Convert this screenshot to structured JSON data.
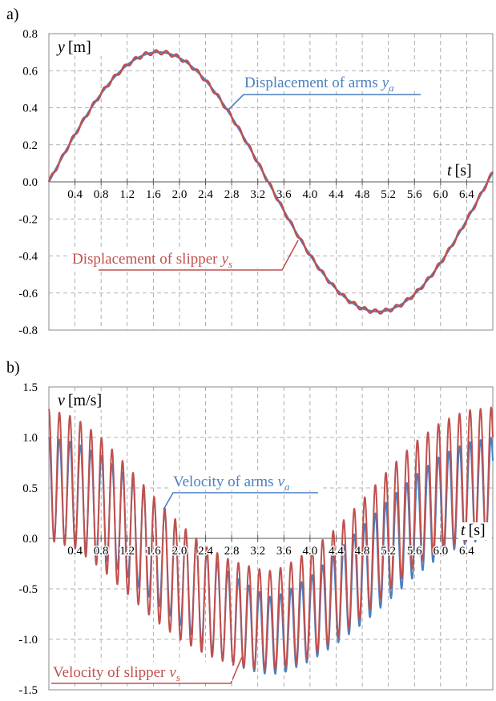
{
  "chart_data": [
    {
      "type": "line",
      "panel_label": "a)",
      "ylabel_var": "y",
      "ylabel_unit": "[m]",
      "xlabel_var": "t",
      "xlabel_unit": "[s]",
      "xlim": [
        0,
        6.8
      ],
      "ylim": [
        -0.8,
        0.8
      ],
      "yticks": [
        -0.8,
        -0.6,
        -0.4,
        -0.2,
        0.0,
        0.2,
        0.4,
        0.6,
        0.8
      ],
      "ytick_labels": [
        "-0.8",
        "-0.6",
        "-0.4",
        "-0.2",
        "0.0",
        "0.2",
        "0.4",
        "0.6",
        "0.8"
      ],
      "xticks": [
        0.4,
        0.8,
        1.2,
        1.6,
        2.0,
        2.4,
        2.8,
        3.2,
        3.6,
        4.0,
        4.4,
        4.8,
        5.2,
        5.6,
        6.0,
        6.4
      ],
      "xtick_labels": [
        "0.4",
        "0.8",
        "1.2",
        "1.6",
        "2.0",
        "2.4",
        "2.8",
        "3.2",
        "3.6",
        "4.0",
        "4.4",
        "4.8",
        "5.2",
        "5.6",
        "6.0",
        "6.4"
      ],
      "grid": true,
      "series": [
        {
          "name": "Displacement of arms",
          "sub": "a",
          "color": "#4a7fc1",
          "x": [
            0,
            0.4,
            0.8,
            1.2,
            1.6,
            1.7,
            2.0,
            2.4,
            2.8,
            3.2,
            3.4,
            3.6,
            4.0,
            4.4,
            4.8,
            5.1,
            5.2,
            5.6,
            6.0,
            6.4,
            6.8
          ],
          "y": [
            0.0,
            0.25,
            0.47,
            0.62,
            0.7,
            0.7,
            0.68,
            0.56,
            0.37,
            0.14,
            0.0,
            -0.14,
            -0.37,
            -0.56,
            -0.68,
            -0.7,
            -0.69,
            -0.62,
            -0.47,
            -0.25,
            0.05
          ]
        },
        {
          "name": "Displacement of slipper",
          "sub": "s",
          "color": "#c0504d",
          "x": [
            0,
            0.4,
            0.8,
            1.2,
            1.6,
            1.7,
            2.0,
            2.4,
            2.8,
            3.2,
            3.4,
            3.6,
            4.0,
            4.4,
            4.8,
            5.1,
            5.2,
            5.6,
            6.0,
            6.4,
            6.8
          ],
          "y": [
            0.0,
            0.25,
            0.47,
            0.62,
            0.7,
            0.7,
            0.68,
            0.56,
            0.37,
            0.14,
            0.0,
            -0.14,
            -0.37,
            -0.56,
            -0.68,
            -0.7,
            -0.69,
            -0.62,
            -0.47,
            -0.25,
            0.05
          ],
          "ripple_amplitude": 0.012,
          "ripple_period": 0.16
        }
      ]
    },
    {
      "type": "line",
      "panel_label": "b)",
      "ylabel_var": "v",
      "ylabel_unit": "[m/s]",
      "xlabel_var": "t",
      "xlabel_unit": "[s]",
      "xlim": [
        0,
        6.8
      ],
      "ylim": [
        -1.5,
        1.5
      ],
      "yticks": [
        -1.5,
        -1.0,
        -0.5,
        0.0,
        0.5,
        1.0,
        1.5
      ],
      "ytick_labels": [
        "-1.5",
        "-1.0",
        "-0.5",
        "0.0",
        "0.5",
        "1.0",
        "1.5"
      ],
      "xticks": [
        0.4,
        0.8,
        1.2,
        1.6,
        2.0,
        2.4,
        2.8,
        3.2,
        3.6,
        4.0,
        4.4,
        4.8,
        5.2,
        5.6,
        6.0,
        6.4
      ],
      "xtick_labels": [
        "0.4",
        "0.8",
        "1.2",
        "1.6",
        "2.0",
        "2.4",
        "2.8",
        "3.2",
        "3.6",
        "4.0",
        "4.4",
        "4.8",
        "5.2",
        "5.6",
        "6.0",
        "6.4"
      ],
      "grid": true,
      "series": [
        {
          "name": "Velocity of arms",
          "sub": "a",
          "color": "#4a7fc1",
          "x": [
            0,
            0.4,
            0.8,
            1.2,
            1.6,
            2.0,
            2.4,
            2.8,
            3.2,
            3.4,
            3.6,
            4.0,
            4.4,
            4.8,
            5.2,
            5.6,
            6.0,
            6.4,
            6.8
          ],
          "upper": [
            1.0,
            0.95,
            0.82,
            0.62,
            0.38,
            0.12,
            -0.13,
            -0.36,
            -0.52,
            -0.58,
            -0.54,
            -0.38,
            -0.14,
            0.12,
            0.38,
            0.62,
            0.82,
            0.95,
            1.0
          ],
          "lower": [
            0.0,
            -0.05,
            -0.18,
            -0.38,
            -0.62,
            -0.85,
            -1.08,
            -1.25,
            -1.33,
            -1.35,
            -1.33,
            -1.22,
            -1.05,
            -0.85,
            -0.62,
            -0.38,
            -0.18,
            -0.05,
            0.0
          ],
          "cycles_per_second": 6.2
        },
        {
          "name": "Velocity of slipper",
          "sub": "s",
          "color": "#c0504d",
          "x": [
            0,
            0.4,
            0.8,
            1.2,
            1.6,
            2.0,
            2.4,
            2.8,
            3.2,
            3.4,
            3.6,
            4.0,
            4.4,
            4.8,
            5.2,
            5.6,
            6.0,
            6.4,
            6.8
          ],
          "upper": [
            1.28,
            1.2,
            1.0,
            0.72,
            0.42,
            0.15,
            -0.08,
            -0.22,
            -0.3,
            -0.32,
            -0.28,
            -0.12,
            0.1,
            0.38,
            0.68,
            0.95,
            1.15,
            1.27,
            1.3
          ],
          "lower": [
            -0.02,
            -0.1,
            -0.3,
            -0.55,
            -0.8,
            -1.0,
            -1.15,
            -1.25,
            -1.3,
            -1.3,
            -1.28,
            -1.18,
            -1.0,
            -0.78,
            -0.52,
            -0.28,
            -0.1,
            -0.02,
            0.0
          ],
          "cycles_per_second": 6.2
        }
      ]
    }
  ]
}
